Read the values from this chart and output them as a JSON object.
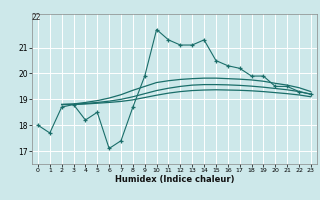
{
  "xlabel": "Humidex (Indice chaleur)",
  "bg_color": "#cde8ea",
  "grid_color": "#ffffff",
  "line_color": "#1a6e6a",
  "x_range": [
    -0.5,
    23.5
  ],
  "y_range": [
    16.5,
    22.3
  ],
  "yticks": [
    17,
    18,
    19,
    20,
    21
  ],
  "xticks": [
    0,
    1,
    2,
    3,
    4,
    5,
    6,
    7,
    8,
    9,
    10,
    11,
    12,
    13,
    14,
    15,
    16,
    17,
    18,
    19,
    20,
    21,
    22,
    23
  ],
  "top_label": "22",
  "series_main": [
    18.0,
    17.7,
    18.7,
    18.8,
    18.2,
    18.5,
    17.1,
    17.4,
    18.7,
    19.9,
    21.7,
    21.3,
    21.1,
    21.1,
    21.3,
    20.5,
    20.3,
    20.2,
    19.9,
    19.9,
    19.5,
    19.5,
    19.3,
    19.2
  ],
  "smooth1_x": [
    2,
    3,
    4,
    5,
    6,
    7,
    8,
    9,
    10,
    11,
    12,
    13,
    14,
    15,
    16,
    17,
    18,
    19,
    20,
    21,
    22,
    23
  ],
  "smooth1_y": [
    18.8,
    18.82,
    18.88,
    18.95,
    19.05,
    19.18,
    19.35,
    19.5,
    19.65,
    19.72,
    19.77,
    19.8,
    19.82,
    19.82,
    19.8,
    19.78,
    19.75,
    19.7,
    19.62,
    19.55,
    19.45,
    19.3
  ],
  "smooth2_x": [
    2,
    3,
    4,
    5,
    6,
    7,
    8,
    9,
    10,
    11,
    12,
    13,
    14,
    15,
    16,
    17,
    18,
    19,
    20,
    21,
    22,
    23
  ],
  "smooth2_y": [
    18.8,
    18.81,
    18.84,
    18.88,
    18.93,
    19.0,
    19.1,
    19.22,
    19.34,
    19.43,
    19.5,
    19.55,
    19.57,
    19.57,
    19.56,
    19.54,
    19.51,
    19.47,
    19.42,
    19.37,
    19.3,
    19.2
  ],
  "smooth3_x": [
    2,
    3,
    4,
    5,
    6,
    7,
    8,
    9,
    10,
    11,
    12,
    13,
    14,
    15,
    16,
    17,
    18,
    19,
    20,
    21,
    22,
    23
  ],
  "smooth3_y": [
    18.8,
    18.8,
    18.82,
    18.85,
    18.88,
    18.92,
    18.98,
    19.07,
    19.16,
    19.24,
    19.3,
    19.34,
    19.36,
    19.37,
    19.36,
    19.35,
    19.33,
    19.3,
    19.26,
    19.22,
    19.17,
    19.1
  ]
}
